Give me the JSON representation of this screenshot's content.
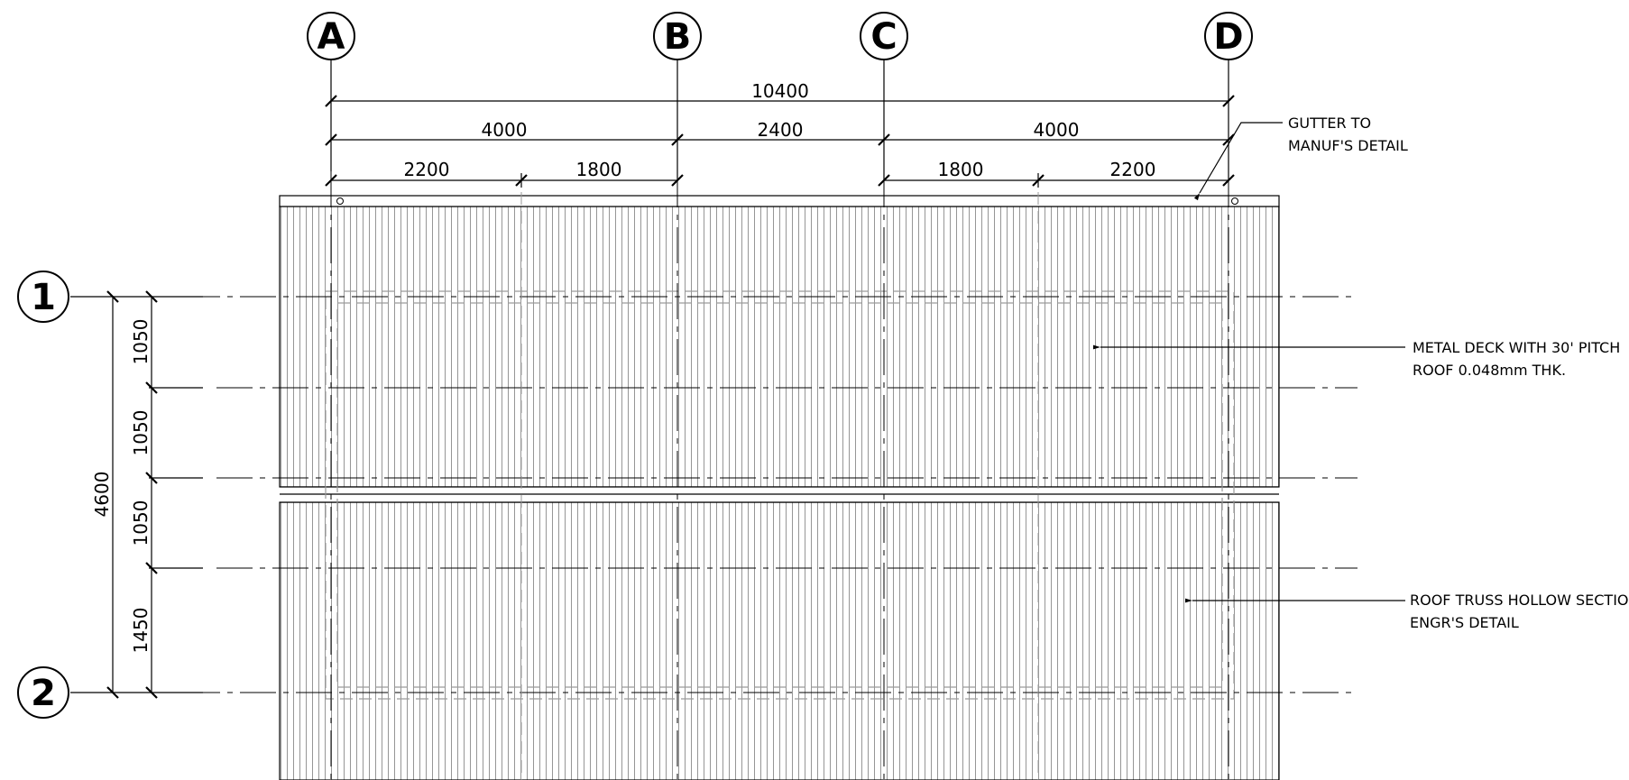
{
  "grid_columns": [
    "A",
    "B",
    "C",
    "D"
  ],
  "grid_rows": [
    "1",
    "2"
  ],
  "dimensions_horizontal": {
    "overall": "10400",
    "bays": [
      "4000",
      "2400",
      "4000"
    ],
    "sub": [
      "2200",
      "1800",
      "1800",
      "2200"
    ]
  },
  "dimensions_vertical": {
    "overall": "4600",
    "segments": [
      "1050",
      "1050",
      "1050",
      "1450"
    ]
  },
  "notes": {
    "gutter": [
      "GUTTER TO",
      "MANUF'S DETAIL"
    ],
    "metal_deck": [
      "METAL DECK WITH 30' PITCH",
      "ROOF 0.048mm THK."
    ],
    "roof_truss": [
      "ROOF TRUSS HOLLOW SECTION TO",
      "ENGR'S DETAIL"
    ]
  }
}
